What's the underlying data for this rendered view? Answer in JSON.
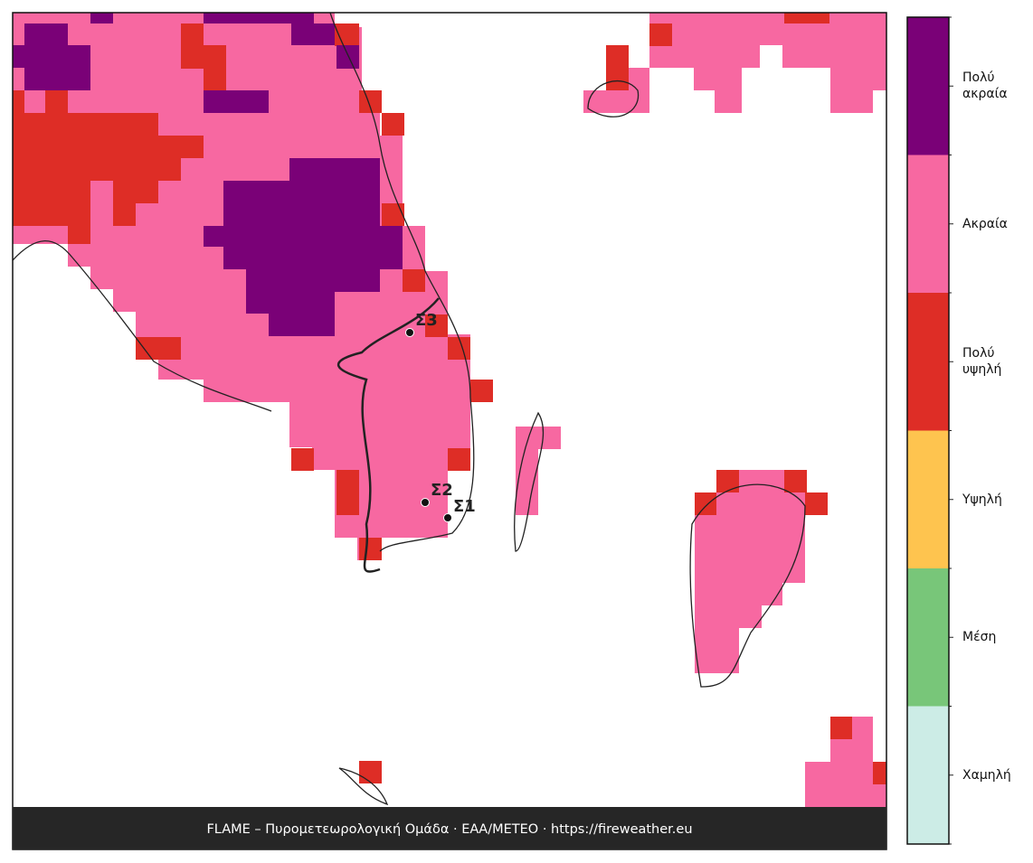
{
  "legend": {
    "categories": [
      {
        "label": "Πολύ ακραία",
        "color": "#7a0177"
      },
      {
        "label": "Ακραία",
        "color": "#f768a1"
      },
      {
        "label": "Πολύ υψηλή",
        "color": "#de2d26"
      },
      {
        "label": "Υψηλή",
        "color": "#fec44f"
      },
      {
        "label": "Μέση",
        "color": "#78c679"
      },
      {
        "label": "Χαμηλή",
        "color": "#ccece6"
      }
    ]
  },
  "sites": [
    {
      "label": "Σ3"
    },
    {
      "label": "Σ2"
    },
    {
      "label": "Σ1"
    }
  ],
  "footer": "FLAME – Πυρομετεωρολογική Ομάδα · ΕΑΑ/METEO · https://fireweather.eu"
}
